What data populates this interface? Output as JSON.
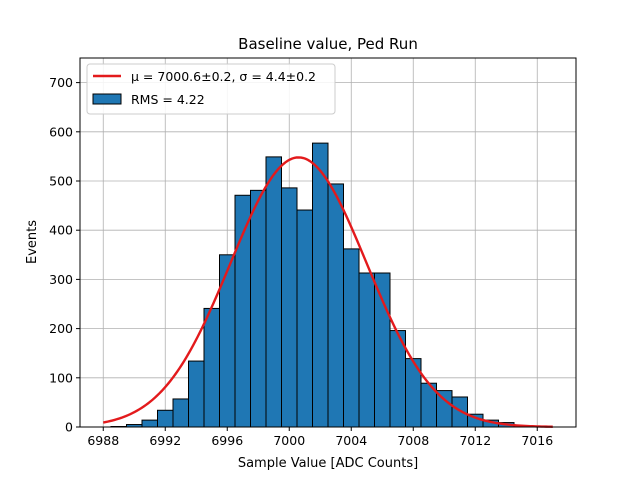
{
  "chart_data": {
    "type": "bar",
    "title": "Baseline value, Ped Run",
    "xlabel": "Sample Value [ADC Counts]",
    "ylabel": "Events",
    "xlim": [
      6986.5,
      7018.5
    ],
    "ylim": [
      0,
      750
    ],
    "x_ticks": [
      6988,
      6992,
      6996,
      7000,
      7004,
      7008,
      7012,
      7016
    ],
    "y_ticks": [
      0,
      100,
      200,
      300,
      400,
      500,
      600,
      700
    ],
    "grid": true,
    "legend_position": "upper left",
    "bin_width": 1,
    "histogram": {
      "name": "RMS = 4.22",
      "color": "#1f77b4",
      "edge_color": "#000000",
      "bins": [
        {
          "x": 6989,
          "count": 1
        },
        {
          "x": 6990,
          "count": 5
        },
        {
          "x": 6991,
          "count": 14
        },
        {
          "x": 6992,
          "count": 34
        },
        {
          "x": 6993,
          "count": 57
        },
        {
          "x": 6994,
          "count": 134
        },
        {
          "x": 6995,
          "count": 241
        },
        {
          "x": 6996,
          "count": 350
        },
        {
          "x": 6997,
          "count": 471
        },
        {
          "x": 6998,
          "count": 481
        },
        {
          "x": 6999,
          "count": 549
        },
        {
          "x": 7000,
          "count": 486
        },
        {
          "x": 7001,
          "count": 441
        },
        {
          "x": 7002,
          "count": 577
        },
        {
          "x": 7003,
          "count": 494
        },
        {
          "x": 7004,
          "count": 362
        },
        {
          "x": 7005,
          "count": 313
        },
        {
          "x": 7006,
          "count": 313
        },
        {
          "x": 7007,
          "count": 196
        },
        {
          "x": 7008,
          "count": 139
        },
        {
          "x": 7009,
          "count": 89
        },
        {
          "x": 7010,
          "count": 74
        },
        {
          "x": 7011,
          "count": 61
        },
        {
          "x": 7012,
          "count": 26
        },
        {
          "x": 7013,
          "count": 14
        },
        {
          "x": 7014,
          "count": 9
        },
        {
          "x": 7015,
          "count": 3
        },
        {
          "x": 7016,
          "count": 1
        }
      ]
    },
    "fit": {
      "name_mu": "μ = 7000.6±0.2",
      "name_sep": ", ",
      "name_sigma": "σ = 4.4±0.2",
      "color": "#e31a1c",
      "mu": 7000.6,
      "sigma": 4.4,
      "amplitude": 548,
      "x_range": [
        6988,
        7017
      ]
    }
  }
}
